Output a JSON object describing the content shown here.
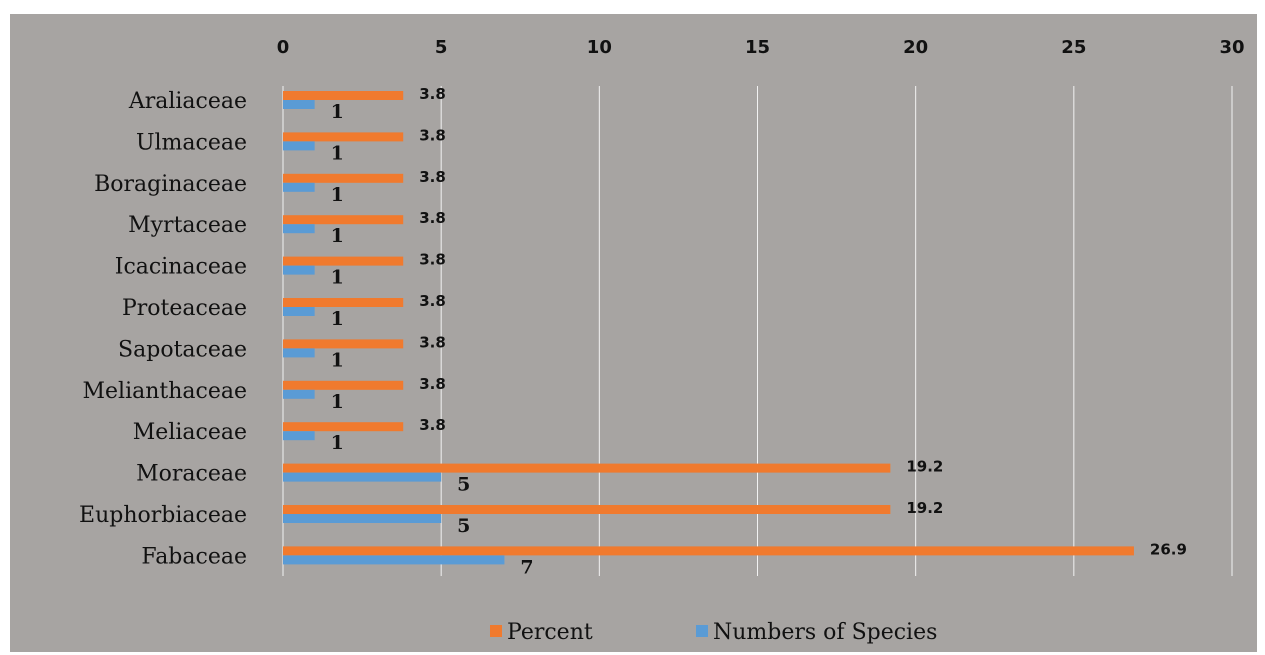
{
  "chart_data": {
    "type": "bar",
    "orientation": "horizontal",
    "categories": [
      "Araliaceae",
      "Ulmaceae",
      "Boraginaceae",
      "Myrtaceae",
      "Icacinaceae",
      "Proteaceae",
      "Sapotaceae",
      "Melianthaceae",
      "Meliaceae",
      "Moraceae",
      "Euphorbiaceae",
      "Fabaceae"
    ],
    "series": [
      {
        "name": "Percent",
        "values": [
          3.8,
          3.8,
          3.8,
          3.8,
          3.8,
          3.8,
          3.8,
          3.8,
          3.8,
          19.2,
          19.2,
          26.9
        ],
        "color": "#f07a2e"
      },
      {
        "name": "Numbers of Species",
        "values": [
          1,
          1,
          1,
          1,
          1,
          1,
          1,
          1,
          1,
          5,
          5,
          7
        ],
        "color": "#5a9bd5"
      }
    ],
    "xlim": [
      0,
      30
    ],
    "x_ticks": [
      0,
      5,
      10,
      15,
      20,
      25,
      30
    ],
    "x_axis_position": "top",
    "grid": true,
    "legend_position": "bottom",
    "background": "#a7a4a2"
  }
}
